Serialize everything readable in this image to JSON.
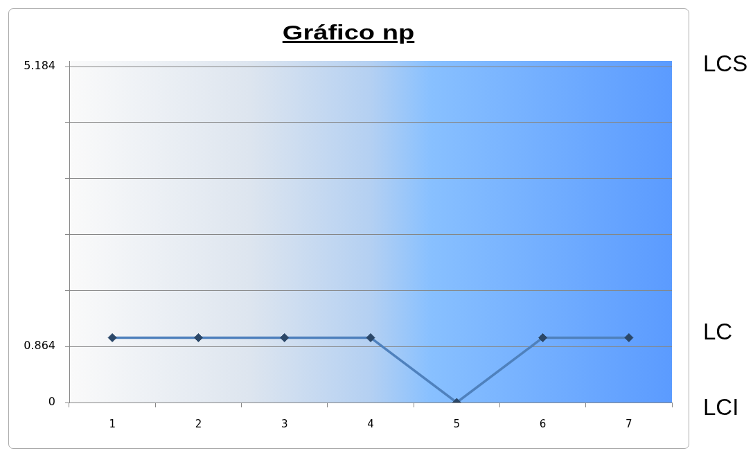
{
  "chart_data": {
    "type": "line",
    "title": "Gráfico np",
    "categories": [
      "1",
      "2",
      "3",
      "4",
      "5",
      "6",
      "7"
    ],
    "series": [
      {
        "color": "#4f81bd",
        "values": [
          1,
          1,
          1,
          1,
          0,
          1,
          1
        ]
      }
    ],
    "ylim": [
      0,
      5.27
    ],
    "yticks": [
      0,
      0.864,
      {
        "value": 1.728,
        "label": null
      },
      {
        "value": 2.592,
        "label": null
      },
      {
        "value": 3.456,
        "label": null
      },
      {
        "value": 4.32,
        "label": null
      },
      5.184
    ],
    "grid": "y",
    "legend": false,
    "marker": "diamond",
    "line_style": "solid",
    "annotations": [
      "LCS",
      "LC",
      "LCI"
    ]
  }
}
